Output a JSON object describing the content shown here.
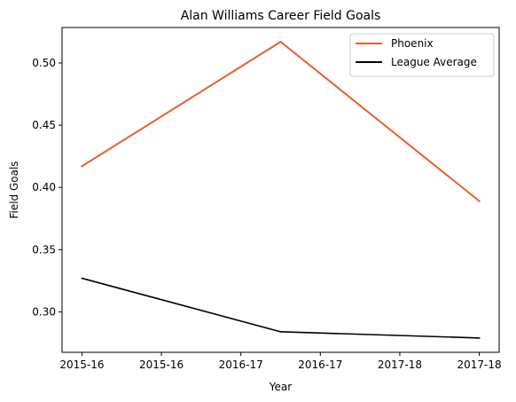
{
  "chart_data": {
    "type": "line",
    "title": "Alan Williams  Career Field Goals",
    "xlabel": "Year",
    "ylabel": "Field Goals",
    "x": [
      0,
      1,
      2
    ],
    "xticks": [
      {
        "pos": 0.0,
        "label": "2015-16"
      },
      {
        "pos": 0.4,
        "label": "2015-16"
      },
      {
        "pos": 0.8,
        "label": "2016-17"
      },
      {
        "pos": 1.2,
        "label": "2016-17"
      },
      {
        "pos": 1.6,
        "label": "2017-18"
      },
      {
        "pos": 2.0,
        "label": "2017-18"
      }
    ],
    "xlim": [
      -0.1,
      2.1
    ],
    "ylim": [
      0.2675,
      0.5285
    ],
    "yticks": [
      0.3,
      0.35,
      0.4,
      0.45,
      0.5
    ],
    "ytick_labels": [
      "0.30",
      "0.35",
      "0.40",
      "0.45",
      "0.50"
    ],
    "grid": false,
    "legend_position": "top-right",
    "series": [
      {
        "name": "Phoenix",
        "color": "#e5622b",
        "values": [
          0.417,
          0.517,
          0.389
        ]
      },
      {
        "name": "League Average",
        "color": "#000000",
        "values": [
          0.327,
          0.284,
          0.279
        ]
      }
    ]
  }
}
